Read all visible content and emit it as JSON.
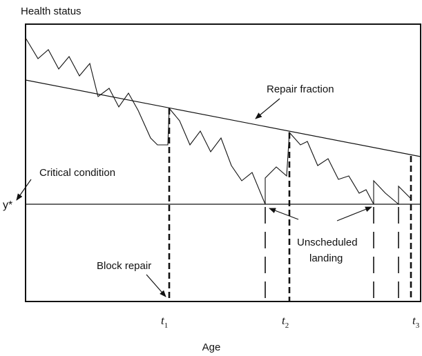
{
  "y_axis_label": "Health status",
  "x_axis_label": "Age",
  "annotations": {
    "repair_fraction": "Repair fraction",
    "critical_condition": "Critical condition",
    "threshold": "y*",
    "unscheduled": [
      "Unscheduled",
      "landing"
    ],
    "block_repair": "Block repair"
  },
  "time_marks": [
    {
      "base": "t",
      "sub": "1"
    },
    {
      "base": "t",
      "sub": "2"
    },
    {
      "base": "t",
      "sub": "3"
    }
  ]
}
